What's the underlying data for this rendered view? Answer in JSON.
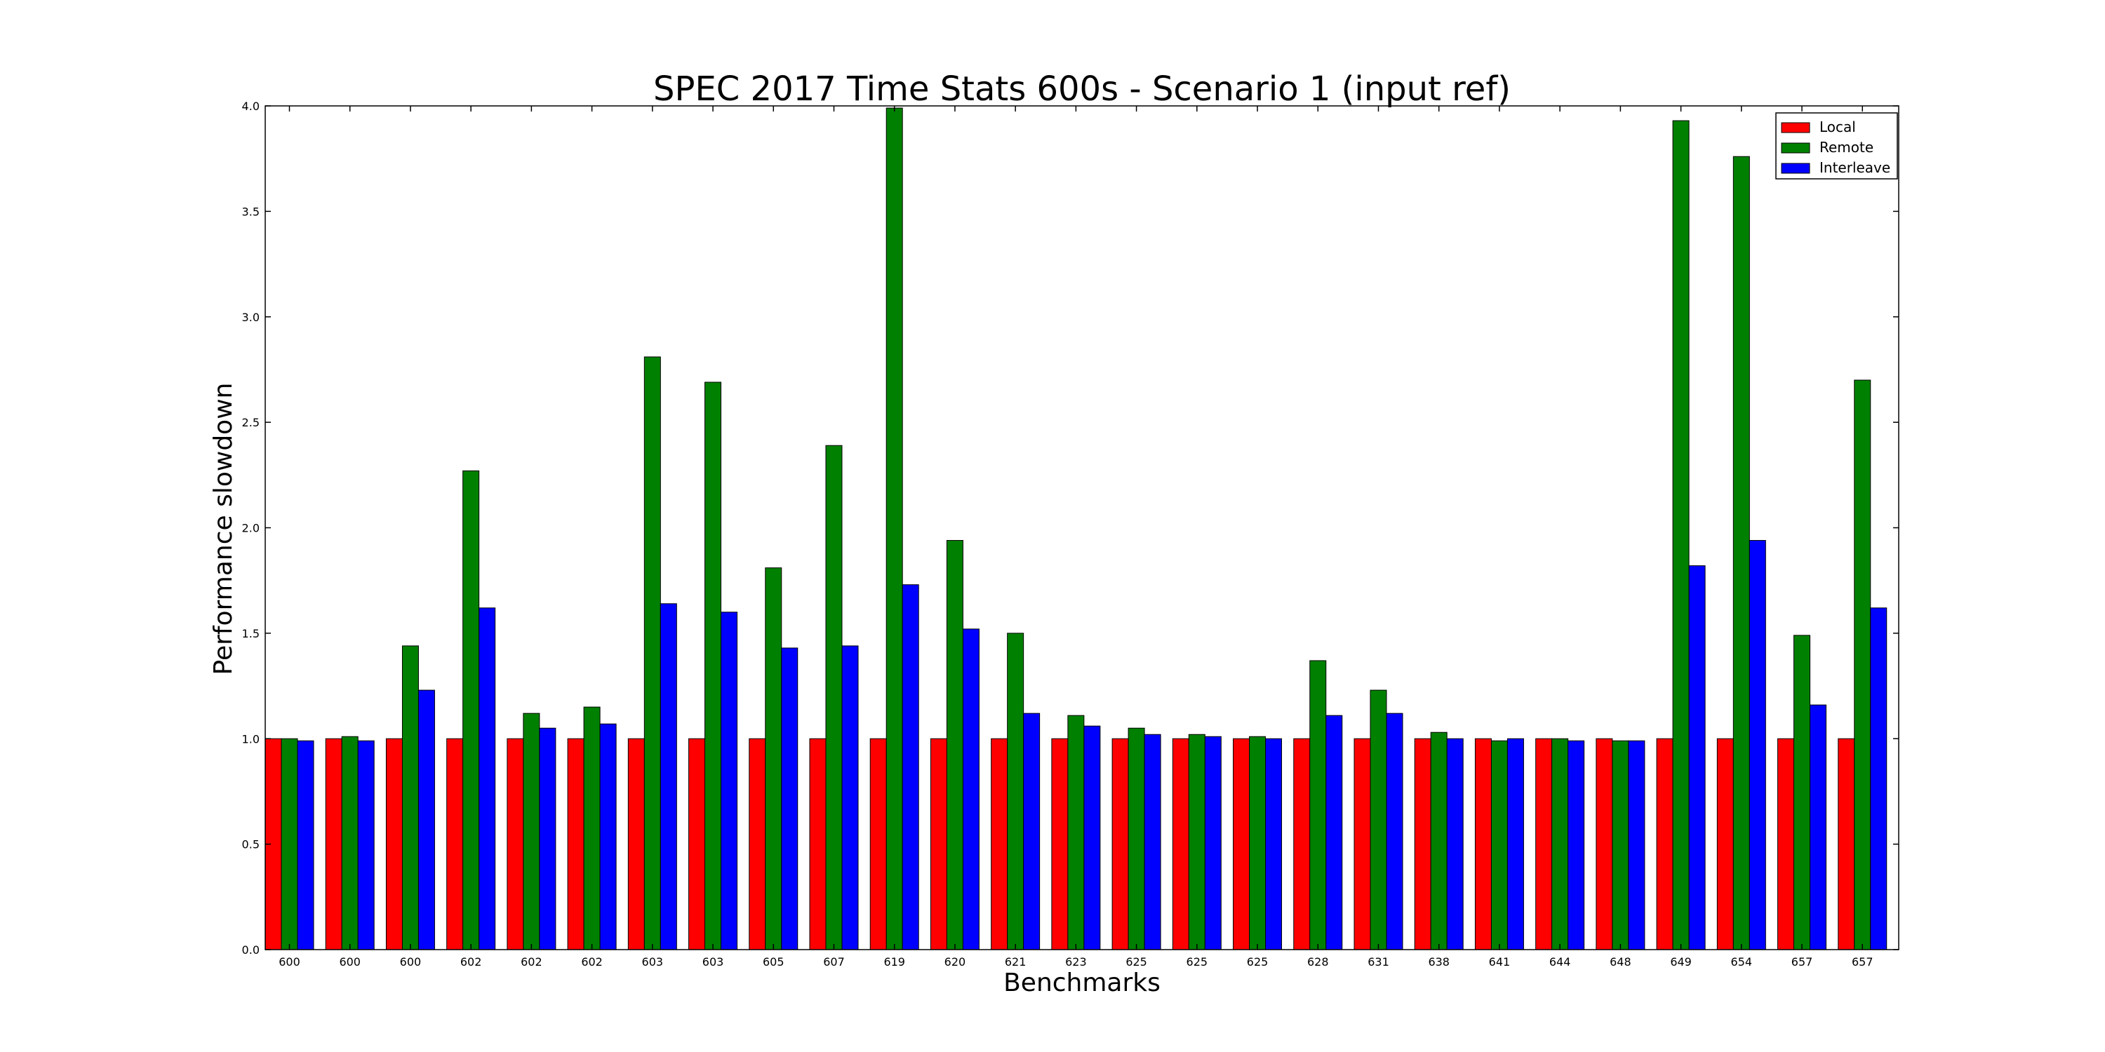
{
  "chart_data": {
    "type": "bar",
    "title": "SPEC 2017 Time Stats 600s - Scenario 1 (input ref)",
    "xlabel": "Benchmarks",
    "ylabel": "Performance slowdown",
    "ylim": [
      0,
      4.0
    ],
    "yticks": [
      "0.0",
      "0.5",
      "1.0",
      "1.5",
      "2.0",
      "2.5",
      "3.0",
      "3.5",
      "4.0"
    ],
    "grid": false,
    "legend_position": "top-right",
    "categories": [
      "600",
      "600",
      "600",
      "602",
      "602",
      "602",
      "603",
      "603",
      "605",
      "607",
      "619",
      "620",
      "621",
      "623",
      "625",
      "625",
      "625",
      "628",
      "631",
      "638",
      "641",
      "644",
      "648",
      "649",
      "654",
      "657",
      "657"
    ],
    "series": [
      {
        "name": "Local",
        "color": "#ff0000",
        "values": [
          1.0,
          1.0,
          1.0,
          1.0,
          1.0,
          1.0,
          1.0,
          1.0,
          1.0,
          1.0,
          1.0,
          1.0,
          1.0,
          1.0,
          1.0,
          1.0,
          1.0,
          1.0,
          1.0,
          1.0,
          1.0,
          1.0,
          1.0,
          1.0,
          1.0,
          1.0,
          1.0
        ]
      },
      {
        "name": "Remote",
        "color": "#008000",
        "values": [
          1.0,
          1.01,
          1.44,
          2.27,
          1.12,
          1.15,
          2.81,
          2.69,
          1.81,
          2.39,
          3.99,
          1.94,
          1.5,
          1.11,
          1.05,
          1.02,
          1.01,
          1.37,
          1.23,
          1.03,
          0.99,
          1.0,
          0.99,
          3.93,
          3.76,
          1.49,
          2.7
        ]
      },
      {
        "name": "Interleave",
        "color": "#0000ff",
        "values": [
          0.99,
          0.99,
          1.23,
          1.62,
          1.05,
          1.07,
          1.64,
          1.6,
          1.43,
          1.44,
          1.73,
          1.52,
          1.12,
          1.06,
          1.02,
          1.01,
          1.0,
          1.11,
          1.12,
          1.0,
          1.0,
          0.99,
          0.99,
          1.82,
          1.94,
          1.16,
          1.62
        ]
      }
    ]
  }
}
